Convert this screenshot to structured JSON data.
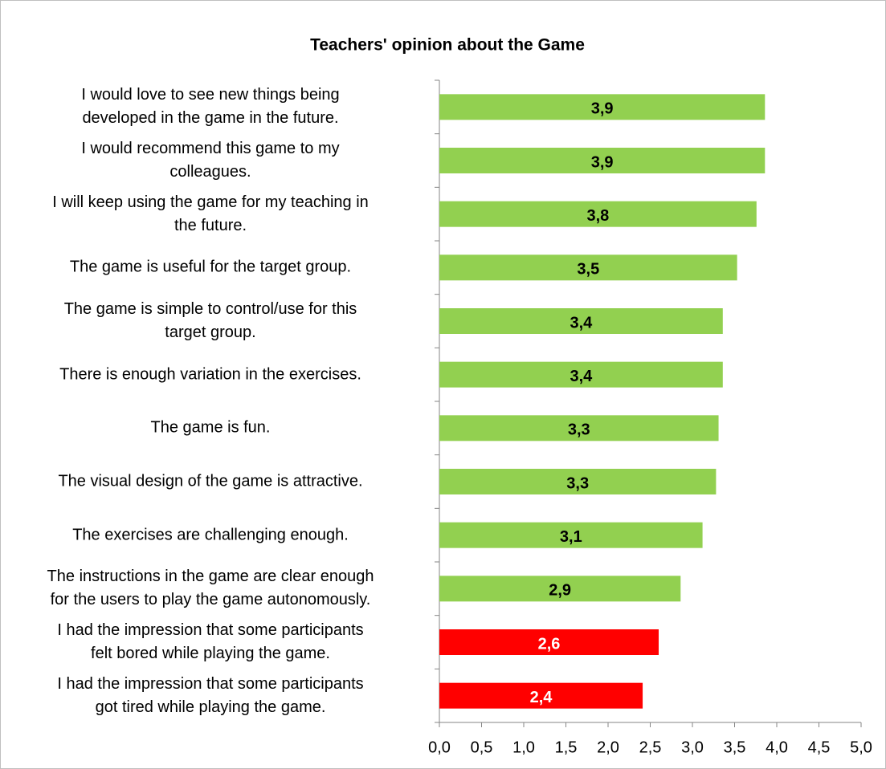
{
  "chart_data": {
    "type": "bar",
    "orientation": "horizontal",
    "title": "Teachers' opinion about the Game",
    "categories": [
      "I would love to see new things being\ndeveloped in the game in the future.",
      "I would recommend this game to my\ncolleagues.",
      "I will keep using the game for my teaching in\nthe future.",
      "The game is useful for the target group.",
      "The game is simple to control/use for this\ntarget group.",
      "There is enough variation in the exercises.",
      "The game is fun.",
      "The visual design of the game is attractive.",
      "The exercises are challenging enough.",
      "The instructions in the game are clear enough\nfor the users to play the game autonomously.",
      "I had the impression that some participants\nfelt bored while playing the game.",
      "I had the impression that some participants\ngot tired while playing the game."
    ],
    "values": [
      3.86,
      3.86,
      3.76,
      3.53,
      3.36,
      3.36,
      3.31,
      3.28,
      3.12,
      2.86,
      2.6,
      2.41
    ],
    "value_labels": [
      "3,9",
      "3,9",
      "3,8",
      "3,5",
      "3,4",
      "3,4",
      "3,3",
      "3,3",
      "3,1",
      "2,9",
      "2,6",
      "2,4"
    ],
    "colors": [
      "#92d050",
      "#92d050",
      "#92d050",
      "#92d050",
      "#92d050",
      "#92d050",
      "#92d050",
      "#92d050",
      "#92d050",
      "#92d050",
      "#ff0000",
      "#ff0000"
    ],
    "xlim": [
      0,
      5
    ],
    "xticks": [
      {
        "value": 0,
        "label": "0,0"
      },
      {
        "value": 0.5,
        "label": "0,5"
      },
      {
        "value": 1,
        "label": "1,0"
      },
      {
        "value": 1.5,
        "label": "1,5"
      },
      {
        "value": 2,
        "label": "2,0"
      },
      {
        "value": 2.5,
        "label": "2,5"
      },
      {
        "value": 3,
        "label": "3,0"
      },
      {
        "value": 3.5,
        "label": "3,5"
      },
      {
        "value": 4,
        "label": "4,0"
      },
      {
        "value": 4.5,
        "label": "4,5"
      },
      {
        "value": 5,
        "label": "5,0"
      }
    ],
    "grid": false
  }
}
